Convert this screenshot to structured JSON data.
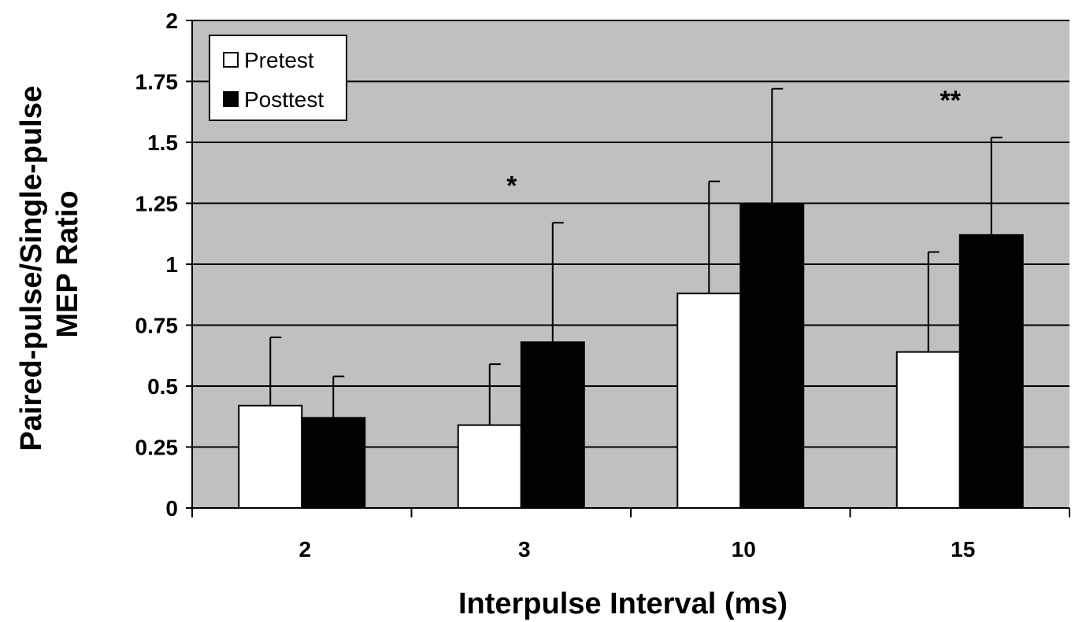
{
  "chart_data": {
    "type": "bar",
    "xlabel": "Interpulse Interval (ms)",
    "ylabel_lines": [
      "Paired-pulse/Single-pulse",
      "MEP Ratio"
    ],
    "ylim": [
      0,
      2
    ],
    "yticks": [
      "0",
      "0.25",
      "0.5",
      "0.75",
      "1",
      "1.25",
      "1.5",
      "1.75",
      "2"
    ],
    "categories": [
      "2",
      "3",
      "10",
      "15"
    ],
    "series": [
      {
        "name": "Pretest",
        "values": [
          0.42,
          0.34,
          0.88,
          0.64
        ],
        "error": [
          0.28,
          0.25,
          0.46,
          0.41
        ]
      },
      {
        "name": "Posttest",
        "values": [
          0.37,
          0.68,
          1.25,
          1.12
        ],
        "error": [
          0.17,
          0.49,
          0.47,
          0.4
        ]
      }
    ],
    "annotations": [
      {
        "category": "3",
        "text": "*"
      },
      {
        "category": "15",
        "text": "**"
      }
    ],
    "grid": true,
    "legend_position": "top-left",
    "colors": {
      "plot_bg": "#c0c0c0",
      "pretest": "#ffffff",
      "posttest": "#000000",
      "grid": "#000000"
    }
  }
}
